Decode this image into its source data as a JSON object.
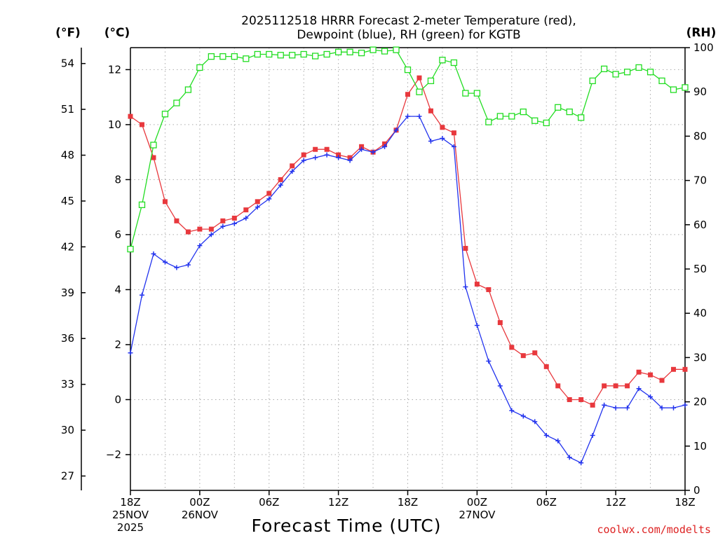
{
  "chart_data": {
    "type": "line",
    "title": [
      "2025112518 HRRR Forecast 2-meter Temperature (red),",
      "Dewpoint (blue), RH (green) for KGTB"
    ],
    "xlabel": "Forecast Time (UTC)",
    "credit": "coolwx.com/modelts",
    "units": {
      "fahrenheit": "(°F)",
      "celsius": "(°C)",
      "rh": "(RH)"
    },
    "x_range_hours": [
      0,
      48
    ],
    "x_ticks": [
      {
        "hour": 0,
        "lines": [
          "18Z",
          "25NOV",
          "2025"
        ]
      },
      {
        "hour": 6,
        "lines": [
          "00Z",
          "26NOV"
        ]
      },
      {
        "hour": 12,
        "lines": [
          "06Z"
        ]
      },
      {
        "hour": 18,
        "lines": [
          "12Z"
        ]
      },
      {
        "hour": 24,
        "lines": [
          "18Z"
        ]
      },
      {
        "hour": 30,
        "lines": [
          "00Z",
          "27NOV"
        ]
      },
      {
        "hour": 36,
        "lines": [
          "06Z"
        ]
      },
      {
        "hour": 42,
        "lines": [
          "12Z"
        ]
      },
      {
        "hour": 48,
        "lines": [
          "18Z"
        ]
      }
    ],
    "y_celsius": {
      "range": [
        -3.3,
        12.8
      ],
      "ticks": [
        "12",
        "10",
        "8",
        "6",
        "4",
        "2",
        "0",
        "−2"
      ],
      "tick_values": [
        12,
        10,
        8,
        6,
        4,
        2,
        0,
        -2
      ]
    },
    "y_fahrenheit": {
      "ticks": [
        "54",
        "51",
        "48",
        "45",
        "42",
        "39",
        "36",
        "33",
        "30",
        "27"
      ],
      "tick_values": [
        54,
        51,
        48,
        45,
        42,
        39,
        36,
        33,
        30,
        27
      ]
    },
    "y_rh": {
      "range": [
        0,
        100
      ],
      "ticks": [
        "100",
        "90",
        "80",
        "70",
        "60",
        "50",
        "40",
        "30",
        "20",
        "10",
        "0"
      ],
      "tick_values": [
        100,
        90,
        80,
        70,
        60,
        50,
        40,
        30,
        20,
        10,
        0
      ]
    },
    "series": [
      {
        "name": "2-meter Temperature",
        "color": "#e8383d",
        "marker": "filled-square",
        "axis": "celsius",
        "values": [
          10.3,
          10.0,
          8.8,
          7.2,
          6.5,
          6.1,
          6.2,
          6.2,
          6.5,
          6.6,
          6.9,
          7.2,
          7.5,
          8.0,
          8.5,
          8.9,
          9.1,
          9.1,
          8.9,
          8.8,
          9.2,
          9.0,
          9.3,
          9.8,
          11.1,
          11.7,
          10.5,
          9.9,
          9.7,
          5.5,
          4.2,
          4.0,
          2.8,
          1.9,
          1.6,
          1.7,
          1.2,
          0.5,
          0.0,
          0.0,
          -0.2,
          0.5,
          0.5,
          0.5,
          1.0,
          0.9,
          0.7,
          1.1,
          1.1
        ]
      },
      {
        "name": "Dewpoint",
        "color": "#2233ee",
        "marker": "plus",
        "axis": "celsius",
        "values": [
          1.7,
          3.8,
          5.3,
          5.0,
          4.8,
          4.9,
          5.6,
          6.0,
          6.3,
          6.4,
          6.6,
          7.0,
          7.3,
          7.8,
          8.3,
          8.7,
          8.8,
          8.9,
          8.8,
          8.7,
          9.1,
          9.0,
          9.2,
          9.8,
          10.3,
          10.3,
          9.4,
          9.5,
          9.2,
          4.1,
          2.7,
          1.4,
          0.5,
          -0.4,
          -0.6,
          -0.8,
          -1.3,
          -1.5,
          -2.1,
          -2.3,
          -1.3,
          -0.2,
          -0.3,
          -0.3,
          0.4,
          0.1,
          -0.3,
          -0.3,
          -0.2
        ]
      },
      {
        "name": "RH",
        "color": "#22dd22",
        "marker": "open-square",
        "axis": "rh",
        "values": [
          54.5,
          64.5,
          78,
          85,
          87.5,
          90.5,
          95.5,
          98,
          98,
          98,
          97.5,
          98.5,
          98.5,
          98.3,
          98.3,
          98.5,
          98.1,
          98.5,
          99,
          99,
          98.8,
          99.5,
          99.2,
          99.5,
          95,
          90,
          92.5,
          97.2,
          96.6,
          89.7,
          89.7,
          83.2,
          84.5,
          84.5,
          85.5,
          83.5,
          83,
          86.5,
          85.5,
          84.2,
          92.5,
          95.2,
          94,
          94.5,
          95.5,
          94.5,
          92.5,
          90.5,
          91
        ]
      }
    ]
  }
}
